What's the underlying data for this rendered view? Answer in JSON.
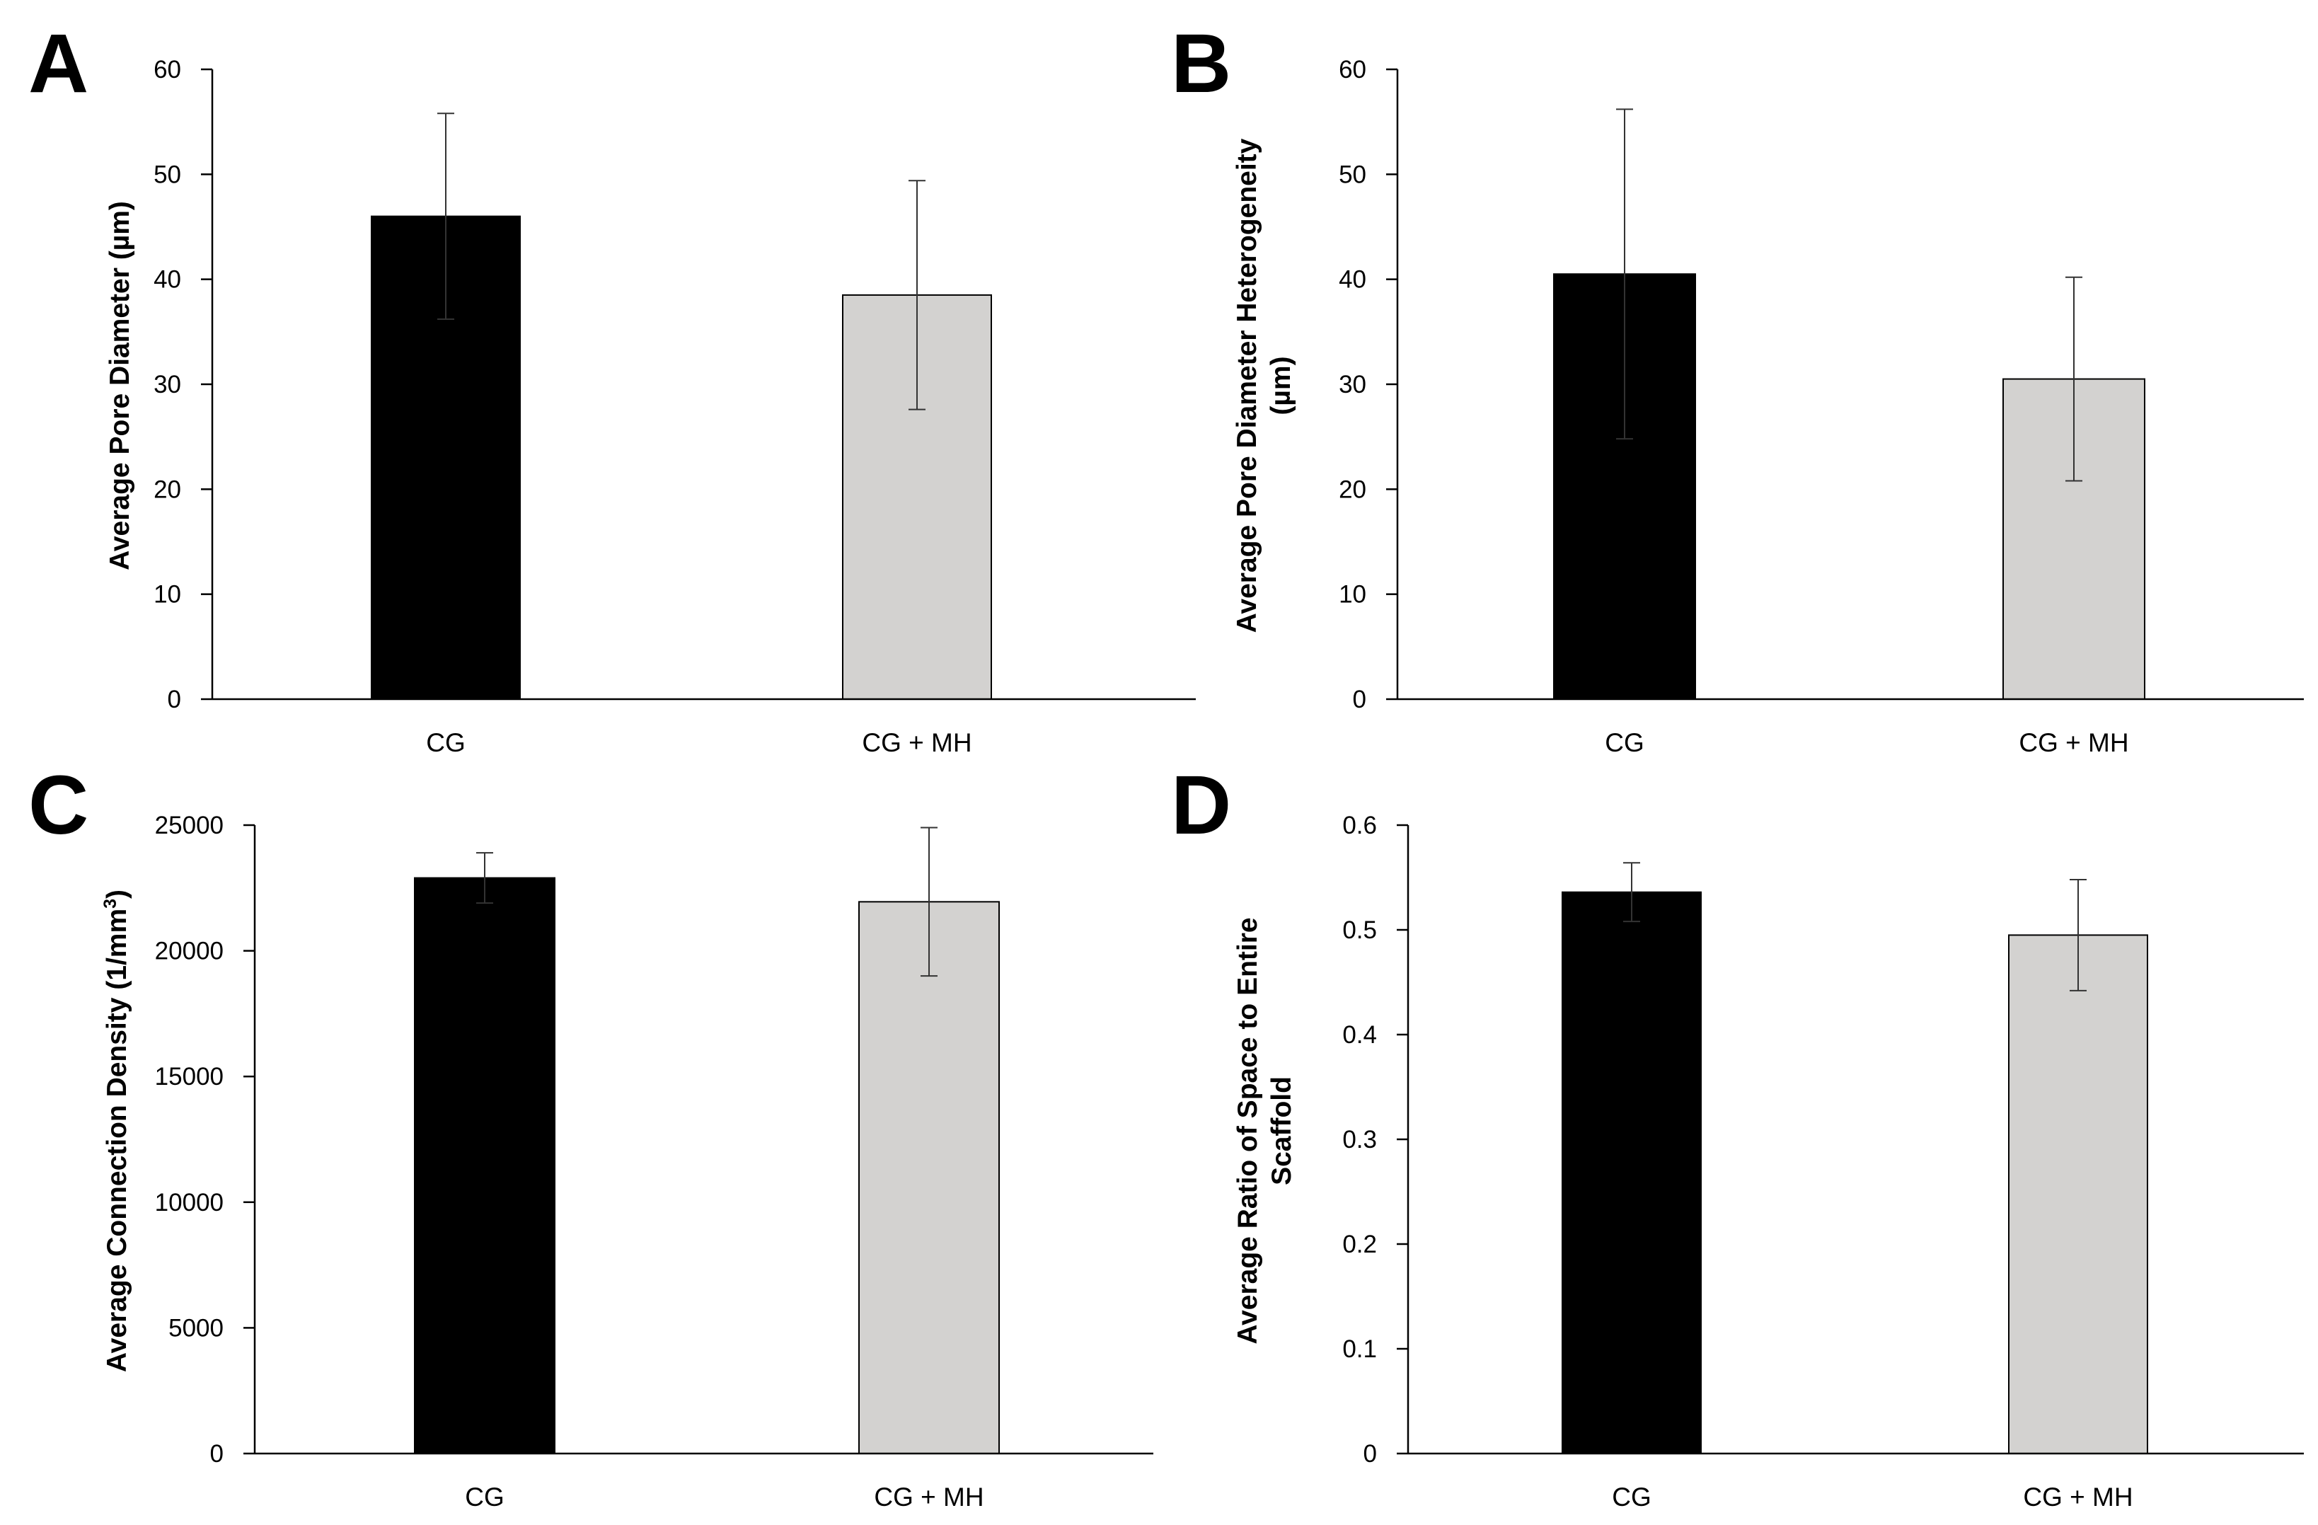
{
  "chart_data": [
    {
      "panel": "A",
      "type": "bar",
      "categories": [
        "CG",
        "CG + MH"
      ],
      "values": [
        46,
        38.5
      ],
      "errors": [
        9.8,
        10.9
      ],
      "colors": [
        "#000000",
        "#d3d2d0"
      ],
      "title": "",
      "xlabel": "",
      "ylabel": "Average Pore Diameter (µm)",
      "ylim": [
        0,
        60
      ],
      "yticks": [
        0,
        10,
        20,
        30,
        40,
        50,
        60
      ],
      "grid": false
    },
    {
      "panel": "B",
      "type": "bar",
      "categories": [
        "CG",
        "CG + MH"
      ],
      "values": [
        40.5,
        30.5
      ],
      "errors": [
        15.7,
        9.7
      ],
      "colors": [
        "#000000",
        "#d3d2d0"
      ],
      "title": "",
      "xlabel": "",
      "ylabel": "Average Pore Diameter Heterogeneity (µm)",
      "ylabel_lines": [
        "Average Pore Diameter Heterogeneity",
        "(µm)"
      ],
      "ylim": [
        0,
        60
      ],
      "yticks": [
        0,
        10,
        20,
        30,
        40,
        50,
        60
      ],
      "grid": false
    },
    {
      "panel": "C",
      "type": "bar",
      "categories": [
        "CG",
        "CG + MH"
      ],
      "values": [
        22900,
        21950
      ],
      "errors": [
        1000,
        2950
      ],
      "colors": [
        "#000000",
        "#d3d2d0"
      ],
      "title": "",
      "xlabel": "",
      "ylabel": "Average Connection Density (1/mm3)",
      "ylabel_parts": [
        "Average Connection Density (1/mm",
        "3",
        ")"
      ],
      "ylim": [
        0,
        25000
      ],
      "yticks": [
        0,
        5000,
        10000,
        15000,
        20000,
        25000
      ],
      "grid": false
    },
    {
      "panel": "D",
      "type": "bar",
      "categories": [
        "CG",
        "CG + MH"
      ],
      "values": [
        0.536,
        0.495
      ],
      "errors": [
        0.028,
        0.053
      ],
      "colors": [
        "#000000",
        "#d3d2d0"
      ],
      "title": "",
      "xlabel": "",
      "ylabel": "Average Ratio of Space to Entire Scaffold",
      "ylabel_lines": [
        "Average Ratio of Space to Entire",
        "Scaffold"
      ],
      "ylim": [
        0,
        0.6
      ],
      "yticks": [
        0,
        0.1,
        0.2,
        0.3,
        0.4,
        0.5,
        0.6
      ],
      "grid": false
    }
  ]
}
